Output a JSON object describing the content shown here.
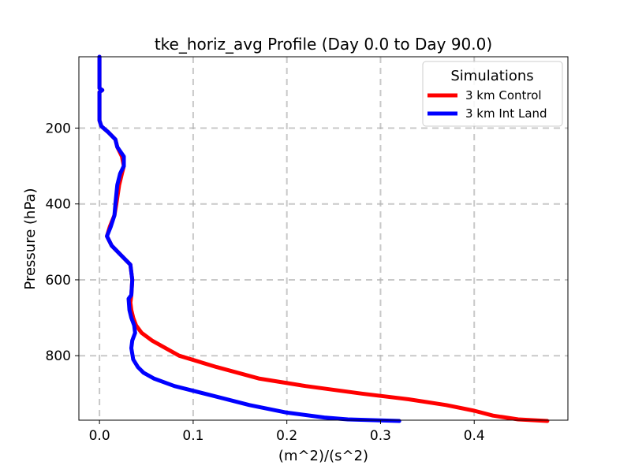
{
  "chart_data": {
    "type": "line",
    "title": "tke_horiz_avg Profile (Day 0.0 to Day 90.0)",
    "xlabel": "(m^2)/(s^2)",
    "ylabel": "Pressure (hPa)",
    "xlim": [
      -0.022,
      0.5
    ],
    "ylim": [
      970,
      12
    ],
    "y_inverted": true,
    "grid": true,
    "x_ticks": [
      0.0,
      0.1,
      0.2,
      0.3,
      0.4
    ],
    "x_tick_labels": [
      "0.0",
      "0.1",
      "0.2",
      "0.3",
      "0.4"
    ],
    "y_ticks": [
      200,
      400,
      600,
      800
    ],
    "y_tick_labels": [
      "200",
      "400",
      "600",
      "800"
    ],
    "legend": {
      "title": "Simulations",
      "placement": "top-right"
    },
    "series": [
      {
        "name": "3 km Control",
        "color": "#ff0000",
        "x": [
          0.0,
          0.0,
          0.0,
          0.003,
          0.0,
          0.0,
          0.0,
          0.002,
          0.009,
          0.017,
          0.019,
          0.024,
          0.026,
          0.024,
          0.021,
          0.018,
          0.016,
          0.011,
          0.008,
          0.013,
          0.025,
          0.033,
          0.035,
          0.034,
          0.033,
          0.034,
          0.036,
          0.039,
          0.045,
          0.056,
          0.085,
          0.125,
          0.17,
          0.22,
          0.28,
          0.33,
          0.37,
          0.4,
          0.42,
          0.447,
          0.478
        ],
        "y": [
          12,
          60,
          95,
          100,
          105,
          150,
          180,
          195,
          210,
          230,
          250,
          275,
          300,
          320,
          350,
          400,
          430,
          460,
          485,
          510,
          540,
          560,
          600,
          640,
          660,
          680,
          700,
          720,
          740,
          760,
          800,
          830,
          860,
          880,
          900,
          915,
          930,
          945,
          958,
          968,
          972
        ]
      },
      {
        "name": "3 km Int Land",
        "color": "#0000ff",
        "x": [
          0.0,
          0.0,
          0.0,
          0.003,
          0.0,
          0.0,
          0.0,
          0.002,
          0.009,
          0.017,
          0.019,
          0.026,
          0.026,
          0.022,
          0.019,
          0.017,
          0.016,
          0.012,
          0.008,
          0.013,
          0.025,
          0.033,
          0.035,
          0.034,
          0.031,
          0.032,
          0.034,
          0.037,
          0.038,
          0.035,
          0.034,
          0.036,
          0.041,
          0.047,
          0.058,
          0.08,
          0.12,
          0.16,
          0.2,
          0.24,
          0.265,
          0.32
        ],
        "y": [
          12,
          60,
          95,
          100,
          105,
          150,
          180,
          195,
          210,
          230,
          250,
          275,
          300,
          320,
          350,
          400,
          430,
          460,
          485,
          510,
          540,
          560,
          600,
          640,
          650,
          680,
          700,
          720,
          740,
          760,
          780,
          810,
          830,
          845,
          860,
          880,
          905,
          930,
          950,
          963,
          968,
          972
        ]
      }
    ]
  }
}
